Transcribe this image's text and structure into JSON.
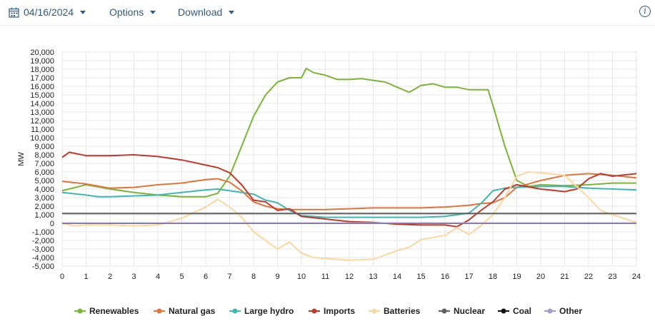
{
  "toolbar": {
    "date": "04/16/2024",
    "options_label": "Options",
    "download_label": "Download",
    "info_glyph": "i",
    "accent": "#2e5b84"
  },
  "chart_data": {
    "type": "line",
    "title": "",
    "xlabel": "",
    "ylabel": "MW",
    "xlim": [
      0,
      24
    ],
    "ylim": [
      -5000,
      20000
    ],
    "x_ticks": [
      0,
      1,
      2,
      3,
      4,
      5,
      6,
      7,
      8,
      9,
      10,
      11,
      12,
      13,
      14,
      15,
      16,
      17,
      18,
      19,
      20,
      21,
      22,
      23,
      24
    ],
    "y_ticks": [
      -5000,
      -4000,
      -3000,
      -2000,
      -1000,
      0,
      1000,
      2000,
      3000,
      4000,
      5000,
      6000,
      7000,
      8000,
      9000,
      10000,
      11000,
      12000,
      13000,
      14000,
      15000,
      16000,
      17000,
      18000,
      19000,
      20000
    ],
    "y_tick_labels": [
      "-5,000",
      "-4,000",
      "-3,000",
      "-2,000",
      "-1,000",
      "0",
      "1,000",
      "2,000",
      "3,000",
      "4,000",
      "5,000",
      "6,000",
      "7,000",
      "8,000",
      "9,000",
      "10,000",
      "11,000",
      "12,000",
      "13,000",
      "14,000",
      "15,000",
      "16,000",
      "17,000",
      "18,000",
      "19,000",
      "20,000"
    ],
    "grid": true,
    "legend_position": "bottom",
    "series": [
      {
        "name": "Renewables",
        "color": "#7ab536",
        "points": [
          [
            0,
            3800
          ],
          [
            1,
            4500
          ],
          [
            2,
            4000
          ],
          [
            3,
            3600
          ],
          [
            4,
            3300
          ],
          [
            5,
            3100
          ],
          [
            6,
            3100
          ],
          [
            6.5,
            3500
          ],
          [
            7,
            5500
          ],
          [
            7.5,
            9000
          ],
          [
            8,
            12500
          ],
          [
            8.5,
            15000
          ],
          [
            9,
            16500
          ],
          [
            9.5,
            17000
          ],
          [
            10,
            17000
          ],
          [
            10.2,
            18100
          ],
          [
            10.5,
            17600
          ],
          [
            11,
            17300
          ],
          [
            11.5,
            16800
          ],
          [
            12,
            16800
          ],
          [
            12.5,
            16900
          ],
          [
            13,
            16700
          ],
          [
            13.5,
            16500
          ],
          [
            14,
            15900
          ],
          [
            14.5,
            15300
          ],
          [
            15,
            16100
          ],
          [
            15.5,
            16300
          ],
          [
            16,
            15900
          ],
          [
            16.5,
            15900
          ],
          [
            17,
            15600
          ],
          [
            17.5,
            15600
          ],
          [
            17.8,
            15600
          ],
          [
            18,
            13800
          ],
          [
            18.5,
            9000
          ],
          [
            19,
            5000
          ],
          [
            19.5,
            4300
          ],
          [
            20,
            4500
          ],
          [
            21,
            4400
          ],
          [
            22,
            4500
          ],
          [
            23,
            4700
          ],
          [
            24,
            4700
          ]
        ]
      },
      {
        "name": "Natural gas",
        "color": "#e2733a",
        "points": [
          [
            0,
            4900
          ],
          [
            1,
            4600
          ],
          [
            2,
            4100
          ],
          [
            3,
            4200
          ],
          [
            4,
            4500
          ],
          [
            5,
            4700
          ],
          [
            6,
            5100
          ],
          [
            6.5,
            5200
          ],
          [
            7,
            4800
          ],
          [
            7.5,
            3800
          ],
          [
            8,
            2500
          ],
          [
            8.5,
            2000
          ],
          [
            9,
            1700
          ],
          [
            9.5,
            1600
          ],
          [
            10,
            1600
          ],
          [
            11,
            1600
          ],
          [
            12,
            1700
          ],
          [
            13,
            1800
          ],
          [
            14,
            1800
          ],
          [
            15,
            1800
          ],
          [
            16,
            1900
          ],
          [
            17,
            2100
          ],
          [
            17.5,
            2300
          ],
          [
            18,
            2400
          ],
          [
            18.5,
            3000
          ],
          [
            19,
            4200
          ],
          [
            20,
            5000
          ],
          [
            21,
            5600
          ],
          [
            22,
            5800
          ],
          [
            23,
            5600
          ],
          [
            24,
            5300
          ]
        ]
      },
      {
        "name": "Large hydro",
        "color": "#3db7b2",
        "points": [
          [
            0,
            3600
          ],
          [
            1,
            3300
          ],
          [
            1.5,
            3100
          ],
          [
            2,
            3100
          ],
          [
            3,
            3200
          ],
          [
            4,
            3300
          ],
          [
            5,
            3600
          ],
          [
            6,
            3900
          ],
          [
            6.5,
            4000
          ],
          [
            7,
            3800
          ],
          [
            7.5,
            3600
          ],
          [
            8,
            3400
          ],
          [
            8.5,
            2700
          ],
          [
            9,
            2400
          ],
          [
            9.5,
            1500
          ],
          [
            10,
            900
          ],
          [
            11,
            700
          ],
          [
            12,
            700
          ],
          [
            13,
            700
          ],
          [
            14,
            700
          ],
          [
            15,
            700
          ],
          [
            16,
            800
          ],
          [
            17,
            1200
          ],
          [
            17.5,
            2300
          ],
          [
            18,
            3800
          ],
          [
            18.5,
            4100
          ],
          [
            19,
            4200
          ],
          [
            20,
            4300
          ],
          [
            21,
            4300
          ],
          [
            22,
            4100
          ],
          [
            23,
            4000
          ],
          [
            24,
            3900
          ]
        ]
      },
      {
        "name": "Imports",
        "color": "#c0392b",
        "points": [
          [
            0,
            7700
          ],
          [
            0.3,
            8300
          ],
          [
            1,
            7900
          ],
          [
            2,
            7900
          ],
          [
            3,
            8000
          ],
          [
            4,
            7800
          ],
          [
            5,
            7400
          ],
          [
            6,
            6800
          ],
          [
            6.5,
            6500
          ],
          [
            7,
            5900
          ],
          [
            7.5,
            4500
          ],
          [
            8,
            2700
          ],
          [
            8.5,
            2500
          ],
          [
            9,
            1500
          ],
          [
            9.5,
            1700
          ],
          [
            10,
            800
          ],
          [
            11,
            500
          ],
          [
            12,
            200
          ],
          [
            13,
            100
          ],
          [
            14,
            -100
          ],
          [
            15,
            -200
          ],
          [
            16,
            -200
          ],
          [
            16.5,
            -400
          ],
          [
            17,
            400
          ],
          [
            17.5,
            1500
          ],
          [
            18,
            2500
          ],
          [
            18.5,
            4000
          ],
          [
            19,
            4500
          ],
          [
            20,
            4000
          ],
          [
            21,
            3700
          ],
          [
            21.5,
            4000
          ],
          [
            22,
            5200
          ],
          [
            22.5,
            5800
          ],
          [
            23,
            5500
          ],
          [
            24,
            5800
          ]
        ]
      },
      {
        "name": "Batteries",
        "color": "#fad7a0",
        "points": [
          [
            0,
            0
          ],
          [
            0.5,
            -300
          ],
          [
            1,
            -200
          ],
          [
            2,
            -200
          ],
          [
            3,
            -300
          ],
          [
            4,
            -200
          ],
          [
            5,
            600
          ],
          [
            6,
            1900
          ],
          [
            6.5,
            2800
          ],
          [
            7,
            1900
          ],
          [
            7.5,
            700
          ],
          [
            8,
            -1000
          ],
          [
            8.5,
            -2000
          ],
          [
            9,
            -3000
          ],
          [
            9.5,
            -2200
          ],
          [
            10,
            -3500
          ],
          [
            10.5,
            -4000
          ],
          [
            11,
            -4100
          ],
          [
            12,
            -4300
          ],
          [
            13,
            -4200
          ],
          [
            14,
            -3200
          ],
          [
            14.5,
            -2800
          ],
          [
            15,
            -1900
          ],
          [
            16,
            -1400
          ],
          [
            16.5,
            -500
          ],
          [
            17,
            -1300
          ],
          [
            17.5,
            -300
          ],
          [
            18,
            1000
          ],
          [
            18.5,
            3000
          ],
          [
            19,
            5500
          ],
          [
            19.5,
            6000
          ],
          [
            20,
            5900
          ],
          [
            21,
            5600
          ],
          [
            22,
            3000
          ],
          [
            22.5,
            1500
          ],
          [
            23,
            1000
          ],
          [
            24,
            100
          ]
        ]
      },
      {
        "name": "Nuclear",
        "color": "#5f5f5f",
        "points": [
          [
            0,
            1150
          ],
          [
            24,
            1150
          ]
        ]
      },
      {
        "name": "Coal",
        "color": "#111111",
        "points": [
          [
            0,
            0
          ],
          [
            24,
            0
          ]
        ]
      },
      {
        "name": "Other",
        "color": "#a99bc9",
        "points": [
          [
            0,
            30
          ],
          [
            24,
            30
          ]
        ]
      }
    ]
  }
}
